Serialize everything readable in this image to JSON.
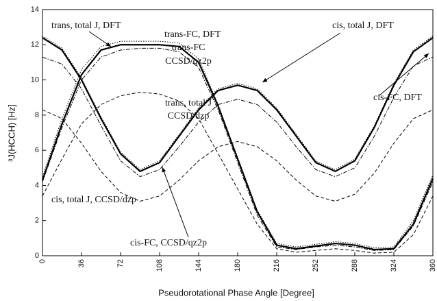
{
  "chart_data": {
    "type": "line",
    "x_label": "Pseudorotational Phase Angle [Degree]",
    "y_label": "³J(HCCH)  [Hz]",
    "xlim": [
      0,
      360
    ],
    "xticks": [
      0,
      36,
      72,
      108,
      144,
      180,
      216,
      252,
      288,
      324,
      360
    ],
    "ylim": [
      0,
      14
    ],
    "yticks": [
      0,
      2,
      4,
      6,
      8,
      10,
      12,
      14
    ],
    "x": [
      0,
      18,
      36,
      54,
      72,
      90,
      108,
      126,
      144,
      162,
      180,
      198,
      216,
      234,
      252,
      270,
      288,
      306,
      324,
      342,
      360
    ],
    "series": [
      {
        "name": "trans, total J, DFT",
        "color": "#000000",
        "style": "solid",
        "linewidth": 2.2,
        "values": [
          4.3,
          7.5,
          10.3,
          11.7,
          12.0,
          12.0,
          12.0,
          11.9,
          11.0,
          8.5,
          5.5,
          2.5,
          0.6,
          0.4,
          0.55,
          0.7,
          0.6,
          0.35,
          0.4,
          1.8,
          4.4
        ]
      },
      {
        "name": "trans-FC, DFT",
        "color": "#000000",
        "style": "dotted",
        "linewidth": 1,
        "values": [
          4.5,
          7.8,
          10.6,
          11.9,
          12.2,
          12.2,
          12.2,
          12.1,
          11.2,
          8.6,
          5.6,
          2.6,
          0.7,
          0.5,
          0.65,
          0.8,
          0.7,
          0.45,
          0.5,
          2.0,
          4.6
        ]
      },
      {
        "name": "trans-FC CCSD/qz2p",
        "color": "#000000",
        "style": "dashdot",
        "linewidth": 1,
        "values": [
          4.2,
          7.3,
          10.0,
          11.3,
          11.7,
          11.8,
          11.8,
          11.6,
          10.7,
          8.3,
          5.3,
          2.3,
          0.5,
          0.35,
          0.5,
          0.6,
          0.5,
          0.3,
          0.35,
          1.7,
          4.2
        ]
      },
      {
        "name": "trans, total J CCSD/dzp",
        "color": "#000000",
        "style": "dashed",
        "linewidth": 1,
        "values": [
          3.4,
          5.5,
          7.5,
          8.6,
          9.1,
          9.3,
          9.2,
          8.8,
          7.8,
          5.8,
          3.8,
          1.8,
          0.4,
          0.2,
          0.3,
          0.4,
          0.3,
          0.15,
          0.2,
          1.2,
          3.4
        ]
      },
      {
        "name": "cis, total J, DFT",
        "color": "#000000",
        "style": "solid",
        "linewidth": 2.2,
        "values": [
          12.4,
          11.7,
          10.0,
          7.8,
          5.8,
          4.8,
          5.3,
          6.8,
          8.3,
          9.4,
          9.7,
          9.4,
          8.3,
          6.8,
          5.3,
          4.8,
          5.4,
          7.3,
          9.7,
          11.6,
          12.4
        ]
      },
      {
        "name": "cis-FC, DFT",
        "color": "#000000",
        "style": "dotted",
        "linewidth": 1,
        "values": [
          12.5,
          11.8,
          10.1,
          7.9,
          5.9,
          4.9,
          5.4,
          6.9,
          8.4,
          9.5,
          9.8,
          9.5,
          8.4,
          6.9,
          5.4,
          4.9,
          5.5,
          7.4,
          9.8,
          11.7,
          12.5
        ]
      },
      {
        "name": "cis-FC, CCSD/qz2p",
        "color": "#000000",
        "style": "dashdot",
        "linewidth": 1,
        "values": [
          11.3,
          10.9,
          9.5,
          7.4,
          5.4,
          4.5,
          4.9,
          6.2,
          7.6,
          8.6,
          8.9,
          8.6,
          7.6,
          6.2,
          4.9,
          4.5,
          5.0,
          6.8,
          9.0,
          10.8,
          11.3
        ]
      },
      {
        "name": "cis, total J, CCSD/dzp",
        "color": "#000000",
        "style": "dashed",
        "linewidth": 1,
        "values": [
          8.3,
          7.8,
          6.4,
          4.8,
          3.6,
          3.1,
          3.4,
          4.3,
          5.4,
          6.2,
          6.5,
          6.2,
          5.4,
          4.3,
          3.4,
          3.1,
          3.5,
          4.7,
          6.4,
          7.8,
          8.3
        ]
      }
    ],
    "annotations": [
      "trans, total J, DFT",
      "trans-FC, DFT",
      "trans-FC",
      "CCSD/qz2p",
      "trans, total J",
      "CCSD/dzp",
      "cis, total J, DFT",
      "cis-FC, DFT",
      "cis, total J, CCSD/dzp",
      "cis-FC, CCSD/qz2p"
    ]
  }
}
